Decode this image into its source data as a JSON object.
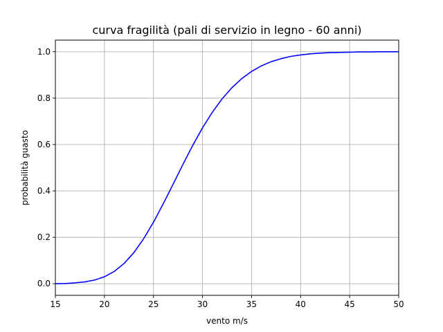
{
  "chart_data": {
    "type": "line",
    "title": "curva fragilità (pali di servizio in legno - 60 anni)",
    "xlabel": "vento m/s",
    "ylabel": "probabilità guasto",
    "xlim": [
      15,
      50
    ],
    "ylim": [
      -0.05,
      1.05
    ],
    "xticks": [
      15,
      20,
      25,
      30,
      35,
      40,
      45,
      50
    ],
    "xtick_labels": [
      "15",
      "20",
      "25",
      "30",
      "35",
      "40",
      "45",
      "50"
    ],
    "yticks": [
      0.0,
      0.2,
      0.4,
      0.6,
      0.8,
      1.0
    ],
    "ytick_labels": [
      "0.0",
      "0.2",
      "0.4",
      "0.6",
      "0.8",
      "1.0"
    ],
    "grid": true,
    "legend": false,
    "series": [
      {
        "color": "#0000ff",
        "x": [
          15,
          16,
          17,
          18,
          19,
          20,
          21,
          22,
          23,
          24,
          25,
          26,
          27,
          28,
          29,
          30,
          31,
          32,
          33,
          34,
          35,
          36,
          37,
          38,
          39,
          40,
          41,
          42,
          43,
          44,
          45,
          46,
          47,
          48,
          49,
          50
        ],
        "y": [
          0.0,
          0.001,
          0.004,
          0.008,
          0.016,
          0.03,
          0.053,
          0.087,
          0.134,
          0.194,
          0.265,
          0.345,
          0.429,
          0.514,
          0.596,
          0.672,
          0.739,
          0.797,
          0.845,
          0.884,
          0.915,
          0.939,
          0.957,
          0.97,
          0.98,
          0.986,
          0.991,
          0.994,
          0.996,
          0.997,
          0.998,
          0.999,
          0.999,
          1.0,
          1.0,
          1.0
        ]
      }
    ]
  }
}
